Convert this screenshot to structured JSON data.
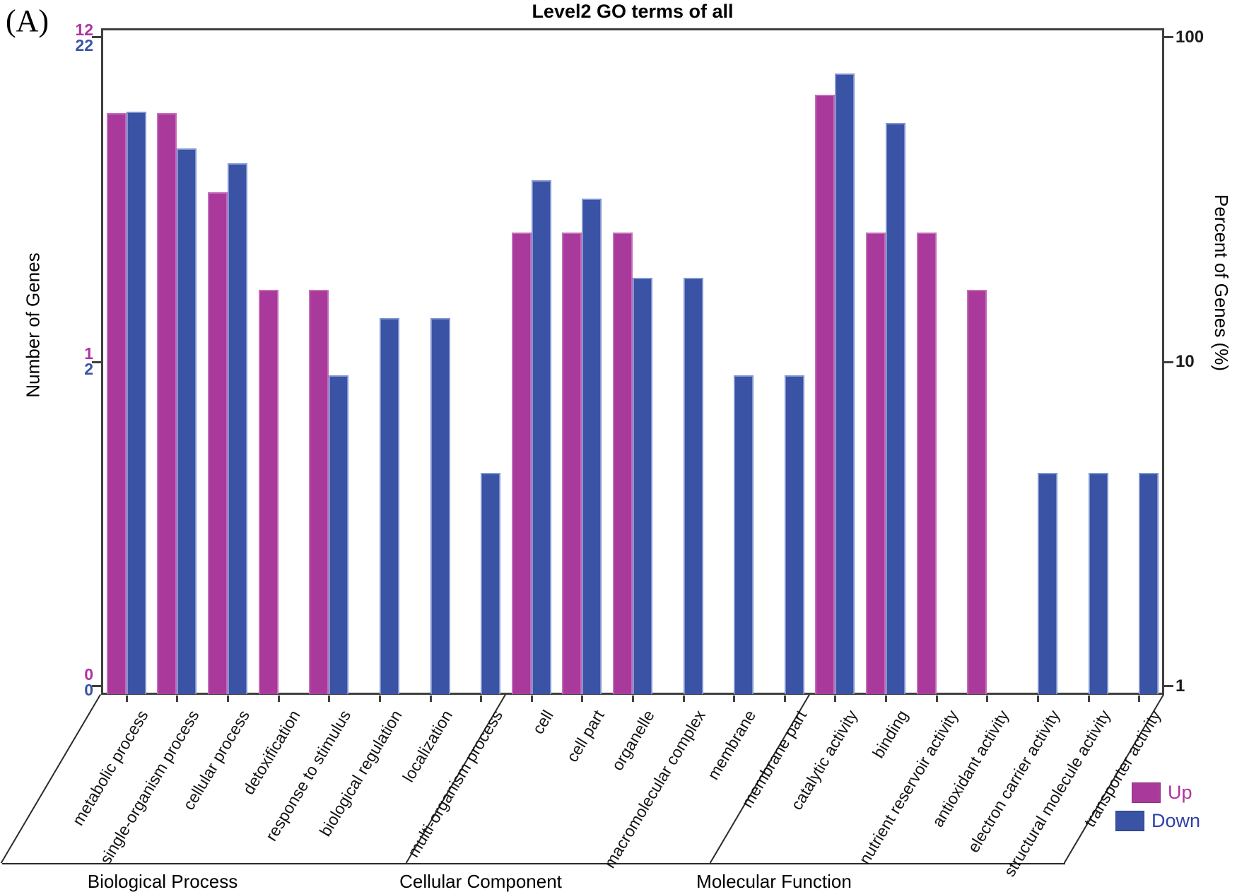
{
  "panel_label": "(A)",
  "chart_data": {
    "type": "bar",
    "title": "Level2 GO terms of all",
    "scale": "log",
    "axis_range_percent": [
      1,
      100
    ],
    "ylabel_left": "Number of Genes",
    "ylabel_right": "Percent of Genes (%)",
    "right_ticks": [
      "100",
      "10",
      "1"
    ],
    "left_ticks_up": [
      "12",
      "1",
      "0"
    ],
    "left_ticks_down": [
      "22",
      "2",
      "0"
    ],
    "totals": {
      "up_genes": 12,
      "down_genes": 22
    },
    "legend": [
      {
        "label": "Up",
        "series": "up",
        "color": "#a93a9c"
      },
      {
        "label": "Down",
        "series": "down",
        "color": "#3a53a5"
      }
    ],
    "groups": [
      {
        "label": "Biological Process",
        "term_count": 8,
        "label_center_x": 230
      },
      {
        "label": "Cellular Component",
        "term_count": 6,
        "label_center_x": 680
      },
      {
        "label": "Molecular Function",
        "term_count": 7,
        "label_center_x": 1095
      }
    ],
    "categories": [
      "metabolic process",
      "single-organism process",
      "cellular process",
      "detoxification",
      "response to stimulus",
      "biological regulation",
      "localization",
      "multi-organism process",
      "cell",
      "cell part",
      "organelle",
      "macromolecular complex",
      "membrane",
      "membrane part",
      "catalytic activity",
      "binding",
      "nutrient reservoir activity",
      "antioxidant activity",
      "electron carrier activity",
      "structural molecule activity",
      "transporter activity"
    ],
    "series": [
      {
        "name": "Up",
        "color": "#a93a9c",
        "genes": [
          7,
          7,
          4,
          2,
          2,
          null,
          null,
          null,
          3,
          3,
          3,
          null,
          null,
          null,
          8,
          3,
          3,
          2,
          null,
          null,
          null
        ],
        "percent": [
          58.33,
          58.33,
          33.33,
          16.67,
          16.67,
          null,
          null,
          null,
          25,
          25,
          25,
          null,
          null,
          null,
          66.67,
          25,
          25,
          16.67,
          null,
          null,
          null
        ]
      },
      {
        "name": "Down",
        "color": "#3a53a5",
        "genes": [
          13,
          10,
          9,
          null,
          2,
          3,
          3,
          1,
          8,
          7,
          4,
          4,
          2,
          2,
          17,
          12,
          null,
          null,
          1,
          1,
          1
        ],
        "percent": [
          59.09,
          45.45,
          40.91,
          null,
          9.09,
          13.64,
          13.64,
          4.55,
          36.36,
          31.82,
          18.18,
          18.18,
          9.09,
          9.09,
          77.27,
          54.55,
          null,
          null,
          4.55,
          4.55,
          4.55
        ]
      }
    ]
  }
}
